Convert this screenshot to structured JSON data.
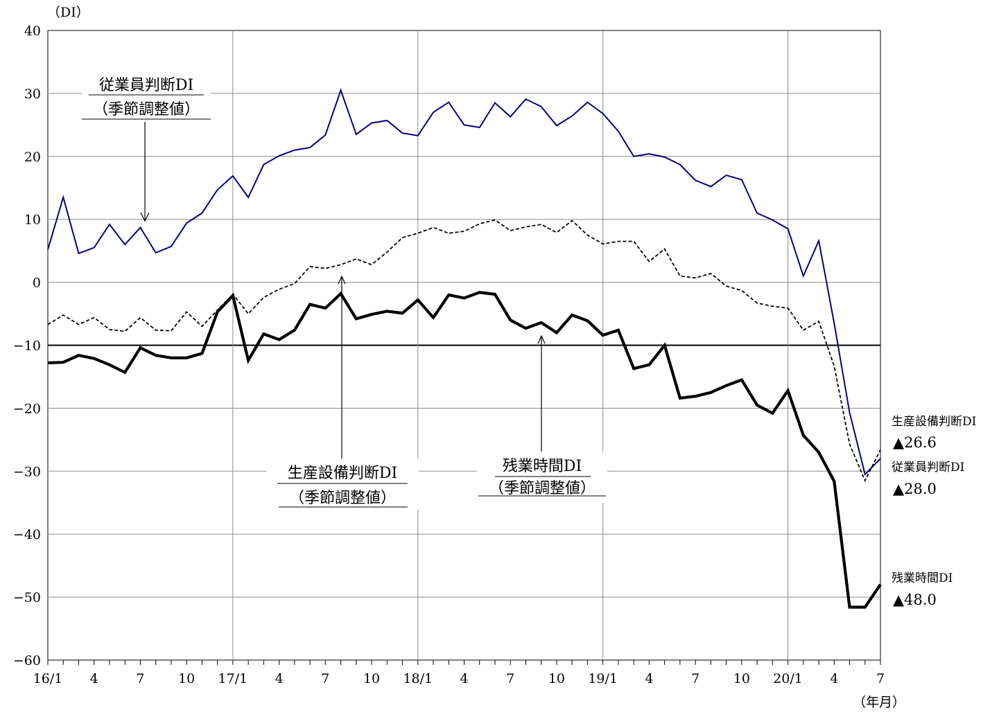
{
  "chart_data": {
    "type": "line",
    "y_unit_label": "（DI）",
    "x_unit_label": "（年月）",
    "ylim": [
      -60,
      40
    ],
    "y_ticks": [
      40,
      30,
      20,
      10,
      0,
      -10,
      -20,
      -30,
      -40,
      -50,
      -60
    ],
    "y_tick_labels": [
      "40",
      "30",
      "20",
      "10",
      "0",
      "−10",
      "−20",
      "−30",
      "−40",
      "−50",
      "−60"
    ],
    "x_tick_labels": [
      "16/1",
      "4",
      "7",
      "10",
      "17/1",
      "4",
      "7",
      "10",
      "18/1",
      "4",
      "7",
      "10",
      "19/1",
      "4",
      "7",
      "10",
      "20/1",
      "4",
      "7"
    ],
    "x": [
      "16/1",
      "16/2",
      "16/3",
      "16/4",
      "16/5",
      "16/6",
      "16/7",
      "16/8",
      "16/9",
      "16/10",
      "16/11",
      "16/12",
      "17/1",
      "17/2",
      "17/3",
      "17/4",
      "17/5",
      "17/6",
      "17/7",
      "17/8",
      "17/9",
      "17/10",
      "17/11",
      "17/12",
      "18/1",
      "18/2",
      "18/3",
      "18/4",
      "18/5",
      "18/6",
      "18/7",
      "18/8",
      "18/9",
      "18/10",
      "18/11",
      "18/12",
      "19/1",
      "19/2",
      "19/3",
      "19/4",
      "19/5",
      "19/6",
      "19/7",
      "19/8",
      "19/9",
      "19/10",
      "19/11",
      "19/12",
      "20/1",
      "20/2",
      "20/3",
      "20/4",
      "20/5",
      "20/6",
      "20/7"
    ],
    "grid": true,
    "reference_line": -10,
    "series": [
      {
        "name": "従業員判断DI（季節調整値）",
        "color": "#000080",
        "style": "solid-thin",
        "values": [
          5.2,
          13.5,
          4.6,
          5.5,
          9.2,
          6.0,
          8.7,
          4.7,
          5.7,
          9.4,
          11.0,
          14.7,
          16.9,
          13.5,
          18.7,
          20.1,
          21.0,
          21.4,
          23.4,
          30.5,
          23.5,
          25.3,
          25.7,
          23.7,
          23.3,
          27.0,
          28.6,
          25.0,
          24.6,
          28.5,
          26.3,
          29.1,
          27.9,
          24.9,
          26.4,
          28.6,
          26.8,
          24.0,
          20.0,
          20.4,
          19.9,
          18.7,
          16.2,
          15.2,
          17.0,
          16.3,
          11.0,
          9.9,
          8.5,
          1.0,
          6.6,
          -6.5,
          -20.7,
          -30.5,
          -28.0
        ]
      },
      {
        "name": "生産設備判断DI（季節調整値）",
        "color": "#000000",
        "style": "dashed",
        "values": [
          -6.7,
          -5.2,
          -6.7,
          -5.6,
          -7.5,
          -7.8,
          -5.6,
          -7.6,
          -7.7,
          -4.7,
          -7.0,
          -4.4,
          -1.9,
          -5.0,
          -2.4,
          -1.1,
          -0.2,
          2.5,
          2.2,
          2.8,
          3.7,
          2.8,
          4.8,
          7.1,
          7.8,
          8.7,
          7.8,
          8.1,
          9.3,
          9.9,
          8.2,
          8.8,
          9.2,
          7.9,
          9.8,
          7.5,
          6.1,
          6.5,
          6.5,
          3.3,
          5.3,
          1.0,
          0.7,
          1.4,
          -0.6,
          -1.3,
          -3.3,
          -3.8,
          -4.1,
          -7.6,
          -6.2,
          -13.3,
          -25.7,
          -31.5,
          -26.6
        ]
      },
      {
        "name": "残業時間DI（季節調整値）",
        "color": "#000000",
        "style": "solid-thick",
        "values": [
          -12.8,
          -12.7,
          -11.6,
          -12.1,
          -13.1,
          -14.3,
          -10.4,
          -11.6,
          -12.0,
          -12.0,
          -11.3,
          -4.7,
          -2.1,
          -12.4,
          -8.2,
          -9.1,
          -7.6,
          -3.5,
          -4.1,
          -1.8,
          -5.8,
          -5.1,
          -4.6,
          -4.9,
          -2.8,
          -5.6,
          -2.0,
          -2.5,
          -1.6,
          -1.9,
          -6.0,
          -7.3,
          -6.4,
          -8.0,
          -5.2,
          -6.1,
          -8.4,
          -7.6,
          -13.7,
          -13.1,
          -10.0,
          -18.4,
          -18.1,
          -17.5,
          -16.4,
          -15.5,
          -19.5,
          -20.8,
          -17.2,
          -24.3,
          -27.0,
          -31.6,
          -51.6,
          -51.6,
          -48.0
        ]
      }
    ],
    "annotations": {
      "employee": {
        "line1": "従業員判断DI",
        "line2": "（季節調整値）"
      },
      "equipment": {
        "line1": "生産設備判断DI",
        "line2": "（季節調整値）"
      },
      "overtime": {
        "line1": "残業時間DI",
        "line2": "（季節調整値）"
      }
    },
    "end_labels": [
      {
        "label": "生産設備判断DI",
        "value": "▲26.6"
      },
      {
        "label": "従業員判断DI",
        "value": "▲28.0"
      },
      {
        "label": "残業時間DI",
        "value": "▲48.0"
      }
    ]
  }
}
